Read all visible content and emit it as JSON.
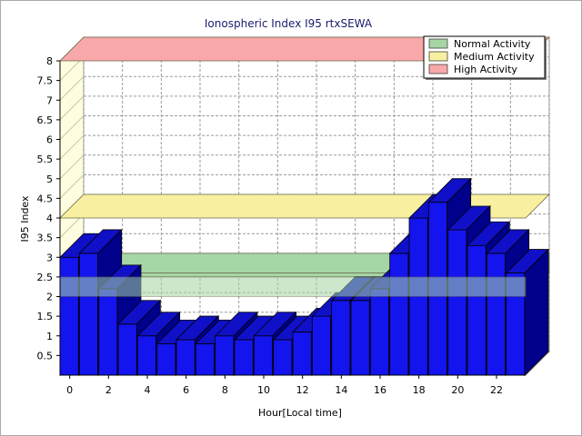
{
  "chart_data": {
    "type": "bar",
    "title": "Ionospheric Index I95 rtxSEWA",
    "xlabel": "Hour[Local time]",
    "ylabel": "I95 Index",
    "x": [
      0,
      1,
      2,
      3,
      4,
      5,
      6,
      7,
      8,
      9,
      10,
      11,
      12,
      13,
      14,
      15,
      16,
      17,
      18,
      19,
      20,
      21,
      22,
      23
    ],
    "values": [
      3.0,
      3.1,
      2.2,
      1.3,
      1.0,
      0.8,
      0.9,
      0.8,
      1.0,
      0.9,
      1.0,
      0.9,
      1.1,
      1.5,
      1.9,
      1.9,
      2.2,
      3.1,
      4.0,
      4.4,
      3.7,
      3.3,
      3.1,
      2.6
    ],
    "x_tick_labels": [
      "0",
      "2",
      "4",
      "6",
      "8",
      "10",
      "12",
      "14",
      "16",
      "18",
      "20",
      "22"
    ],
    "y_tick_labels": [
      "0.5",
      "1",
      "1.5",
      "2",
      "2.5",
      "3",
      "3.5",
      "4",
      "4.5",
      "5",
      "5.5",
      "6",
      "6.5",
      "7",
      "7.5",
      "8"
    ],
    "ylim": [
      0,
      8
    ],
    "grid": true,
    "legend_position": "top-right",
    "bands": [
      {
        "name": "Normal Activity",
        "from": 2.0,
        "to": 2.5,
        "color": "#a6d5a6"
      },
      {
        "name": "Medium Activity",
        "from": 4.0,
        "to": 4.0,
        "color": "#f8f0a0"
      },
      {
        "name": "High Activity",
        "from": 8.0,
        "to": 8.0,
        "color": "#f8a8a8"
      }
    ],
    "bar_color": "#1414ee",
    "bar_top_color": "#1010c8",
    "bar_side_color": "#00008b"
  }
}
